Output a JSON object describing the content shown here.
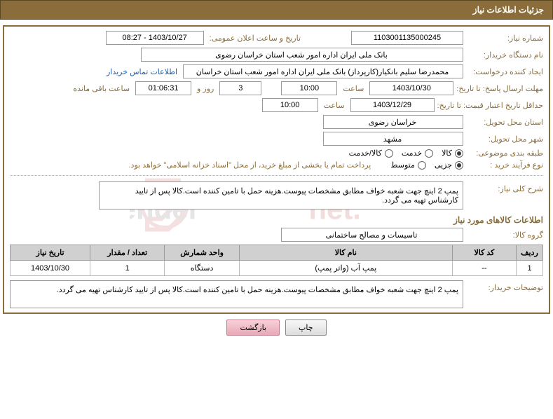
{
  "header": {
    "title": "جزئیات اطلاعات نیاز"
  },
  "fields": {
    "need_number_label": "شماره نیاز:",
    "need_number": "1103001135000245",
    "announce_label": "تاریخ و ساعت اعلان عمومی:",
    "announce_value": "1403/10/27 - 08:27",
    "buyer_org_label": "نام دستگاه خریدار:",
    "buyer_org": "بانک ملی ایران اداره امور شعب استان خراسان رضوی",
    "requester_label": "ایجاد کننده درخواست:",
    "requester": "محمدرضا سلیم  بانکیار(کارپرداز) بانک ملی ایران اداره امور شعب استان خراسان",
    "contact_link": "اطلاعات تماس خریدار",
    "response_deadline_label": "مهلت ارسال پاسخ: تا تاریخ:",
    "response_date": "1403/10/30",
    "time_label": "ساعت",
    "response_time": "10:00",
    "days_value": "3",
    "days_label": "روز و",
    "countdown": "01:06:31",
    "remaining_label": "ساعت باقی مانده",
    "validity_label": "حداقل تاریخ اعتبار قیمت: تا تاریخ:",
    "validity_date": "1403/12/29",
    "validity_time": "10:00",
    "delivery_province_label": "استان محل تحویل:",
    "delivery_province": "خراسان رضوی",
    "delivery_city_label": "شهر محل تحویل:",
    "delivery_city": "مشهد",
    "category_label": "طبقه بندی موضوعی:",
    "purchase_type_label": "نوع فرآیند خرید :",
    "purchase_note": "پرداخت تمام یا بخشی از مبلغ خرید، از محل \"اسناد خزانه اسلامی\" خواهد بود."
  },
  "radios": {
    "category": [
      {
        "label": "کالا",
        "checked": true
      },
      {
        "label": "خدمت",
        "checked": false
      },
      {
        "label": "کالا/خدمت",
        "checked": false
      }
    ],
    "purchase": [
      {
        "label": "جزیی",
        "checked": true
      },
      {
        "label": "متوسط",
        "checked": false
      }
    ]
  },
  "sections": {
    "general_desc_label": "شرح کلی نیاز:",
    "general_desc": "پمپ 2 اینچ جهت شعبه خواف مطابق مشخصات پیوست.هزینه حمل با تامین کننده است.کالا پس از تایید کارشناس تهیه می گردد.",
    "goods_info_title": "اطلاعات کالاهای مورد نیاز",
    "goods_group_label": "گروه کالا:",
    "goods_group": "تاسیسات و مصالح ساختمانی",
    "buyer_notes_label": "توضیحات خریدار:",
    "buyer_notes": "پمپ 2 اینچ جهت شعبه خواف مطابق مشخصات پیوست.هزینه حمل با تامین کننده است.کالا پس از تایید کارشناس تهیه می گردد."
  },
  "table": {
    "headers": [
      "ردیف",
      "کد کالا",
      "نام کالا",
      "واحد شمارش",
      "تعداد / مقدار",
      "تاریخ نیاز"
    ],
    "row": [
      "1",
      "--",
      "پمپ آب (واتر پمپ)",
      "دستگاه",
      "1",
      "1403/10/30"
    ]
  },
  "buttons": {
    "print": "چاپ",
    "back": "بازگشت"
  },
  "colors": {
    "brand": "#8a6d3b",
    "watermark": "#b02020"
  }
}
